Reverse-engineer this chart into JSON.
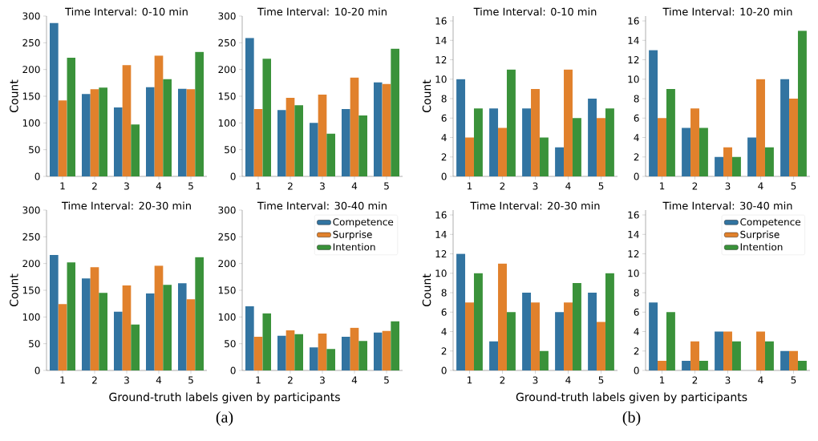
{
  "chart_data": [
    {
      "type": "bar",
      "title": "Time Interval: 0-10 min",
      "ylabel": "Count",
      "categories": [
        "1",
        "2",
        "3",
        "4",
        "5"
      ],
      "ylim": [
        0,
        300
      ],
      "yticks": [
        0,
        50,
        100,
        150,
        200,
        250,
        300
      ],
      "series": [
        {
          "color": "#3274a1",
          "values": [
            287,
            154,
            129,
            167,
            164
          ]
        },
        {
          "color": "#e1812c",
          "values": [
            142,
            163,
            208,
            226,
            163
          ]
        },
        {
          "color": "#3a923a",
          "values": [
            222,
            166,
            97,
            182,
            233
          ]
        }
      ]
    },
    {
      "type": "bar",
      "title": "Time Interval: 10-20 min",
      "categories": [
        "1",
        "2",
        "3",
        "4",
        "5"
      ],
      "ylim": [
        0,
        300
      ],
      "yticks": [
        0,
        50,
        100,
        150,
        200,
        250,
        300
      ],
      "series": [
        {
          "color": "#3274a1",
          "values": [
            259,
            124,
            100,
            126,
            176
          ]
        },
        {
          "color": "#e1812c",
          "values": [
            126,
            147,
            153,
            185,
            173
          ]
        },
        {
          "color": "#3a923a",
          "values": [
            220,
            133,
            80,
            114,
            239
          ]
        }
      ]
    },
    {
      "type": "bar",
      "title": "Time Interval: 20-30 min",
      "ylabel": "Count",
      "xlabel": "Ground-truth labels given by participants",
      "annotations": [
        "(a)"
      ],
      "categories": [
        "1",
        "2",
        "3",
        "4",
        "5"
      ],
      "ylim": [
        0,
        300
      ],
      "yticks": [
        0,
        50,
        100,
        150,
        200,
        250,
        300
      ],
      "series": [
        {
          "color": "#3274a1",
          "values": [
            216,
            172,
            110,
            144,
            163
          ]
        },
        {
          "color": "#e1812c",
          "values": [
            124,
            193,
            159,
            196,
            133
          ]
        },
        {
          "color": "#3a923a",
          "values": [
            202,
            145,
            86,
            160,
            212
          ]
        }
      ]
    },
    {
      "type": "bar",
      "title": "Time Interval: 30-40 min",
      "legend": "top right",
      "categories": [
        "1",
        "2",
        "3",
        "4",
        "5"
      ],
      "ylim": [
        0,
        300
      ],
      "yticks": [
        0,
        50,
        100,
        150,
        200,
        250,
        300
      ],
      "series": [
        {
          "name": "Competence",
          "color": "#3274a1",
          "values": [
            120,
            65,
            43,
            63,
            71
          ]
        },
        {
          "name": "Surprise",
          "color": "#e1812c",
          "values": [
            63,
            75,
            69,
            80,
            74
          ]
        },
        {
          "name": "Intention",
          "color": "#3a923a",
          "values": [
            107,
            68,
            40,
            55,
            92
          ]
        }
      ]
    },
    {
      "type": "bar",
      "title": "Time Interval: 0-10 min",
      "ylabel": "Count",
      "categories": [
        "1",
        "2",
        "3",
        "4",
        "5"
      ],
      "ylim": [
        0,
        16.5
      ],
      "yticks": [
        0,
        2,
        4,
        6,
        8,
        10,
        12,
        14,
        16
      ],
      "series": [
        {
          "color": "#3274a1",
          "values": [
            10,
            7,
            7,
            3,
            8
          ]
        },
        {
          "color": "#e1812c",
          "values": [
            4,
            5,
            9,
            11,
            6
          ]
        },
        {
          "color": "#3a923a",
          "values": [
            7,
            11,
            4,
            6,
            7
          ]
        }
      ]
    },
    {
      "type": "bar",
      "title": "Time Interval: 10-20 min",
      "categories": [
        "1",
        "2",
        "3",
        "4",
        "5"
      ],
      "ylim": [
        0,
        16.5
      ],
      "yticks": [
        0,
        2,
        4,
        6,
        8,
        10,
        12,
        14,
        16
      ],
      "series": [
        {
          "color": "#3274a1",
          "values": [
            13,
            5,
            2,
            4,
            10
          ]
        },
        {
          "color": "#e1812c",
          "values": [
            6,
            7,
            3,
            10,
            8
          ]
        },
        {
          "color": "#3a923a",
          "values": [
            9,
            5,
            2,
            3,
            15
          ]
        }
      ]
    },
    {
      "type": "bar",
      "title": "Time Interval: 20-30 min",
      "ylabel": "Count",
      "xlabel": "Ground-truth labels given by participants",
      "annotations": [
        "(b)"
      ],
      "categories": [
        "1",
        "2",
        "3",
        "4",
        "5"
      ],
      "ylim": [
        0,
        16.5
      ],
      "yticks": [
        0,
        2,
        4,
        6,
        8,
        10,
        12,
        14,
        16
      ],
      "series": [
        {
          "color": "#3274a1",
          "values": [
            12,
            3,
            8,
            6,
            8
          ]
        },
        {
          "color": "#e1812c",
          "values": [
            7,
            11,
            7,
            7,
            5
          ]
        },
        {
          "color": "#3a923a",
          "values": [
            10,
            6,
            2,
            9,
            10
          ]
        }
      ]
    },
    {
      "type": "bar",
      "title": "Time Interval: 30-40 min",
      "legend": "top right",
      "categories": [
        "1",
        "2",
        "3",
        "4",
        "5"
      ],
      "ylim": [
        0,
        16.5
      ],
      "yticks": [
        0,
        2,
        4,
        6,
        8,
        10,
        12,
        14,
        16
      ],
      "series": [
        {
          "name": "Competence",
          "color": "#3274a1",
          "values": [
            7,
            1,
            4,
            0,
            2
          ]
        },
        {
          "name": "Surprise",
          "color": "#e1812c",
          "values": [
            1,
            3,
            4,
            4,
            2
          ]
        },
        {
          "name": "Intention",
          "color": "#3a923a",
          "values": [
            6,
            1,
            3,
            3,
            1
          ]
        }
      ]
    }
  ]
}
